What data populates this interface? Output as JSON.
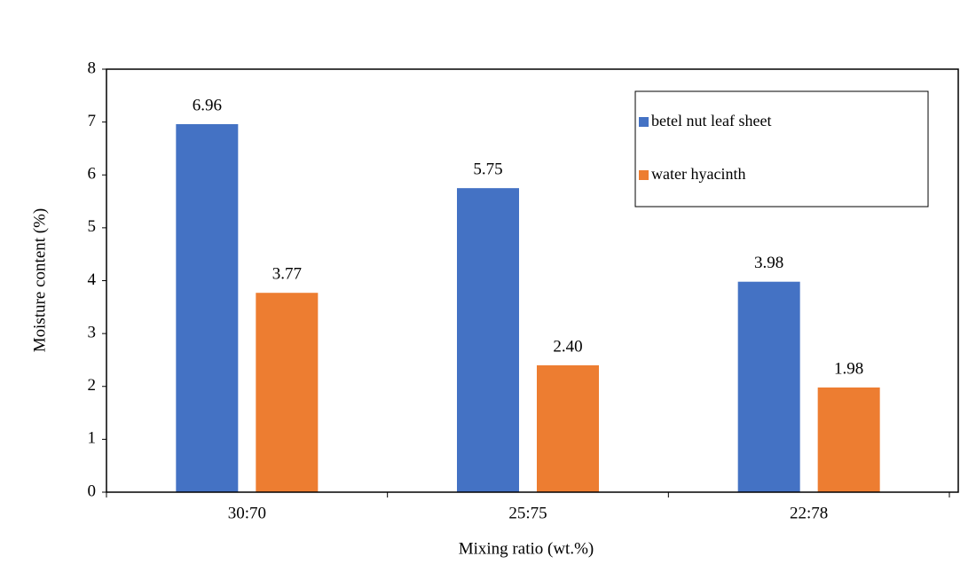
{
  "chart_data": {
    "type": "bar",
    "x_label": "Mixing ratio (wt.%)",
    "y_label": "Moisture content (%)",
    "categories": [
      "30:70",
      "25:75",
      "22:78"
    ],
    "series": [
      {
        "name": "betel nut leaf sheet",
        "color": "#4472c4",
        "values": [
          6.96,
          5.75,
          3.98
        ],
        "value_labels": [
          "6.96",
          "5.75",
          "3.98"
        ]
      },
      {
        "name": "water hyacinth",
        "color": "#ed7d31",
        "values": [
          3.77,
          2.4,
          1.98
        ],
        "value_labels": [
          "3.77",
          "2.40",
          "1.98"
        ]
      }
    ],
    "ylim": [
      0,
      8
    ],
    "yticks": [
      0,
      1,
      2,
      3,
      4,
      5,
      6,
      7,
      8
    ],
    "legend": "upper right"
  }
}
